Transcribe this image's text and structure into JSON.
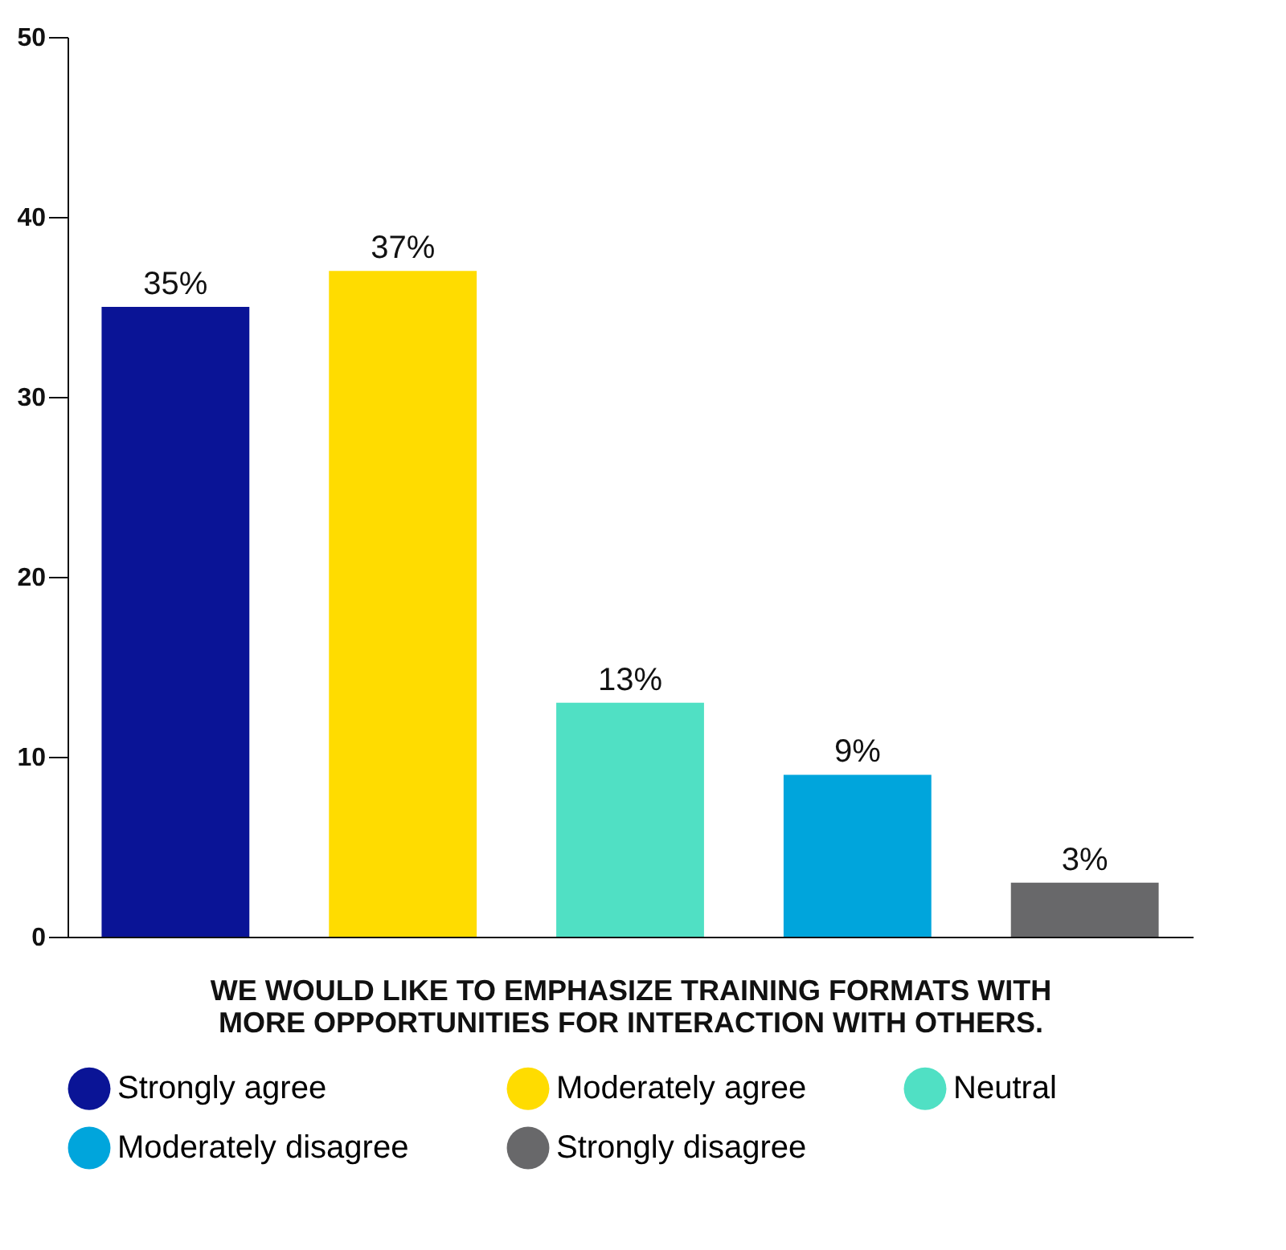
{
  "chart_data": {
    "type": "bar",
    "xlabel": "WE WOULD LIKE TO EMPHASIZE TRAINING FORMATS WITH\nMORE OPPORTUNITIES FOR INTERACTION WITH OTHERS.",
    "categories": [
      null,
      null,
      null,
      null,
      null
    ],
    "series": [
      {
        "name": "Strongly agree",
        "color": "#0a1496",
        "values": [
          35,
          null,
          null,
          null,
          null
        ],
        "value_labels": [
          "35%",
          null,
          null,
          null,
          null
        ]
      },
      {
        "name": "Moderately agree",
        "color": "#ffdc00",
        "values": [
          null,
          37,
          null,
          null,
          null
        ],
        "value_labels": [
          null,
          "37%",
          null,
          null,
          null
        ]
      },
      {
        "name": "Neutral",
        "color": "#50e0c4",
        "values": [
          null,
          null,
          13,
          null,
          null
        ],
        "value_labels": [
          null,
          null,
          "13%",
          null,
          null
        ]
      },
      {
        "name": "Moderately disagree",
        "color": "#00a5dc",
        "values": [
          null,
          null,
          null,
          9,
          null
        ],
        "value_labels": [
          null,
          null,
          null,
          "9%",
          null
        ]
      },
      {
        "name": "Strongly disagree",
        "color": "#68686a",
        "values": [
          null,
          null,
          null,
          null,
          3
        ],
        "value_labels": [
          null,
          null,
          null,
          null,
          "3%"
        ]
      }
    ],
    "ylim": [
      0,
      50
    ],
    "yticks": [
      0,
      10,
      20,
      30,
      40,
      50
    ],
    "grid": false,
    "legend": "bottom",
    "tick_labels": "y"
  }
}
